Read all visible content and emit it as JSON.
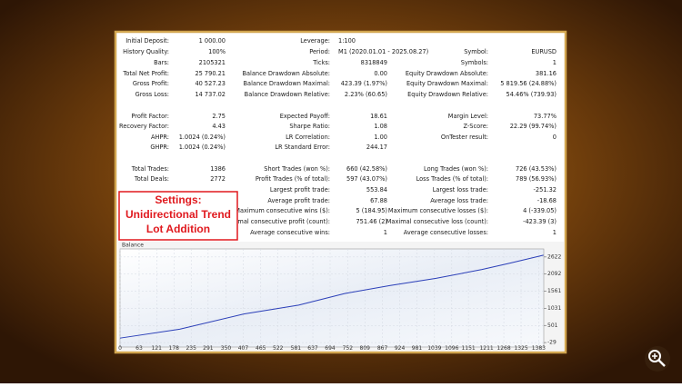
{
  "report": {
    "rows": [
      {
        "left": {
          "label": "Initial Deposit:",
          "value": "1 000.00"
        },
        "middle": {
          "label": "Leverage:",
          "value": "1:100"
        }
      },
      {
        "left": {
          "label": "History Quality:",
          "value": "100%"
        },
        "middle": {
          "label": "Period:",
          "value": "M1 (2020.01.01 - 2025.08.27)"
        },
        "right": {
          "label": "Symbol:",
          "value": "EURUSD"
        }
      },
      {
        "left": {
          "label": "Bars:",
          "value": "2105321"
        },
        "middle": {
          "label": "Ticks:",
          "value": "8318849"
        },
        "right": {
          "label": "Symbols:",
          "value": "1"
        }
      },
      {
        "left": {
          "label": "Total Net Profit:",
          "value": "25 790.21"
        },
        "middle": {
          "label": "Balance Drawdown Absolute:",
          "value": "0.00"
        },
        "right": {
          "label": "Equity Drawdown Absolute:",
          "value": "381.16"
        }
      },
      {
        "left": {
          "label": "Gross Profit:",
          "value": "40 527.23"
        },
        "middle": {
          "label": "Balance Drawdown Maximal:",
          "value": "423.39 (1.97%)"
        },
        "right": {
          "label": "Equity Drawdown Maximal:",
          "value": "5 819.56 (24.88%)"
        }
      },
      {
        "left": {
          "label": "Gross Loss:",
          "value": "14 737.02"
        },
        "middle": {
          "label": "Balance Drawdown Relative:",
          "value": "2.23% (60.65)"
        },
        "right": {
          "label": "Equity Drawdown Relative:",
          "value": "54.46% (739.93)"
        }
      },
      {
        "left": {
          "label": "Profit Factor:",
          "value": "2.75"
        },
        "middle": {
          "label": "Expected Payoff:",
          "value": "18.61"
        },
        "right": {
          "label": "Margin Level:",
          "value": "73.77%"
        }
      },
      {
        "left": {
          "label": "Recovery Factor:",
          "value": "4.43"
        },
        "middle": {
          "label": "Sharpe Ratio:",
          "value": "1.08"
        },
        "right": {
          "label": "Z-Score:",
          "value": "22.29 (99.74%)"
        }
      },
      {
        "left": {
          "label": "AHPR:",
          "value": "1.0024 (0.24%)"
        },
        "middle": {
          "label": "LR Correlation:",
          "value": "1.00"
        },
        "right": {
          "label": "OnTester result:",
          "value": "0"
        }
      },
      {
        "left": {
          "label": "GHPR:",
          "value": "1.0024 (0.24%)"
        },
        "middle": {
          "label": "LR Standard Error:",
          "value": "244.17"
        }
      },
      {
        "left": {
          "label": "Total Trades:",
          "value": "1386"
        },
        "middle": {
          "label": "Short Trades (won %):",
          "value": "660 (42.58%)"
        },
        "right": {
          "label": "Long Trades (won %):",
          "value": "726 (43.53%)"
        }
      },
      {
        "left": {
          "label": "Total Deals:",
          "value": "2772"
        },
        "middle": {
          "label": "Profit Trades (% of total):",
          "value": "597 (43.07%)"
        },
        "right": {
          "label": "Loss Trades (% of total):",
          "value": "789 (56.93%)"
        }
      },
      {
        "middle": {
          "label": "Largest profit trade:",
          "value": "553.84"
        },
        "right": {
          "label": "Largest loss trade:",
          "value": "-251.32"
        }
      },
      {
        "middle": {
          "label": "Average profit trade:",
          "value": "67.88"
        },
        "right": {
          "label": "Average loss trade:",
          "value": "-18.68"
        }
      },
      {
        "middle": {
          "label": "Maximum consecutive wins ($):",
          "value": "5 (184.95)"
        },
        "right": {
          "label": "Maximum consecutive losses ($):",
          "value": "4 (-339.05)"
        }
      },
      {
        "middle": {
          "label": "Maximal consecutive profit (count):",
          "value": "751.46 (2)"
        },
        "right": {
          "label": "Maximal consecutive loss (count):",
          "value": "-423.39 (3)"
        }
      },
      {
        "middle": {
          "label": "Average consecutive wins:",
          "value": "1"
        },
        "right": {
          "label": "Average consecutive losses:",
          "value": "1"
        }
      }
    ]
  },
  "annotation": {
    "lines": [
      "Settings:",
      "Unidirectional Trend",
      "Lot Addition"
    ]
  },
  "chart_data": {
    "type": "line",
    "title": "Balance",
    "x": [
      0,
      197,
      409,
      590,
      742,
      893,
      1044,
      1196,
      1287,
      1399
    ],
    "series": [
      {
        "name": "Balance",
        "color": "#2b3fb8",
        "values": [
          109,
          385,
          855,
          1131,
          1490,
          1738,
          1959,
          2235,
          2429,
          2677
        ]
      }
    ],
    "xlim": [
      0,
      1400
    ],
    "xticks": [
      0,
      63,
      121,
      178,
      235,
      291,
      350,
      407,
      465,
      522,
      581,
      637,
      694,
      752,
      809,
      867,
      924,
      981,
      1039,
      1096,
      1151,
      1211,
      1268,
      1325,
      1383
    ],
    "ylim": [
      -167,
      2871
    ],
    "yticks": [
      -29,
      501,
      1031,
      1561,
      2092,
      2622
    ],
    "grid": true
  }
}
